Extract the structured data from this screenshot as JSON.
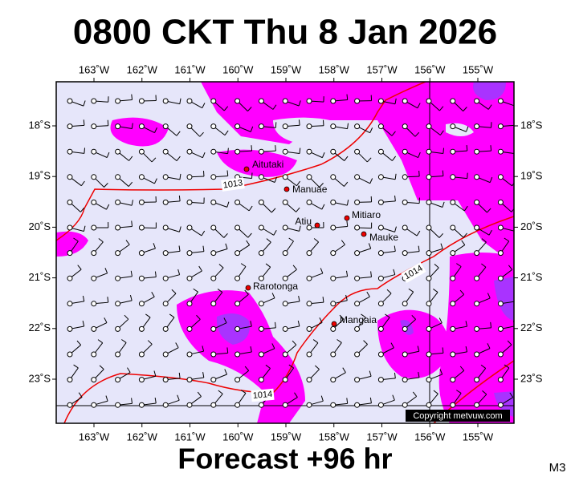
{
  "header": {
    "title": "0800 CKT Thu 8 Jan 2026"
  },
  "map": {
    "longitude_labels": [
      "163˚W",
      "162˚W",
      "161˚W",
      "160˚W",
      "159˚W",
      "158˚W",
      "157˚W",
      "156˚W",
      "155˚W"
    ],
    "latitude_labels": [
      "18˚S",
      "19˚S",
      "20˚S",
      "21˚S",
      "22˚S",
      "23˚S"
    ],
    "places": [
      "Aitutaki",
      "Manuae",
      "Atiu",
      "Mitiaro",
      "Mauke",
      "Rarotonga",
      "Mangaia"
    ],
    "isobar_labels": [
      "1013",
      "1014",
      "1014"
    ],
    "copyright": "Copyright metvuw.com"
  },
  "footer": {
    "forecast": "Forecast +96 hr",
    "model": "M3"
  }
}
